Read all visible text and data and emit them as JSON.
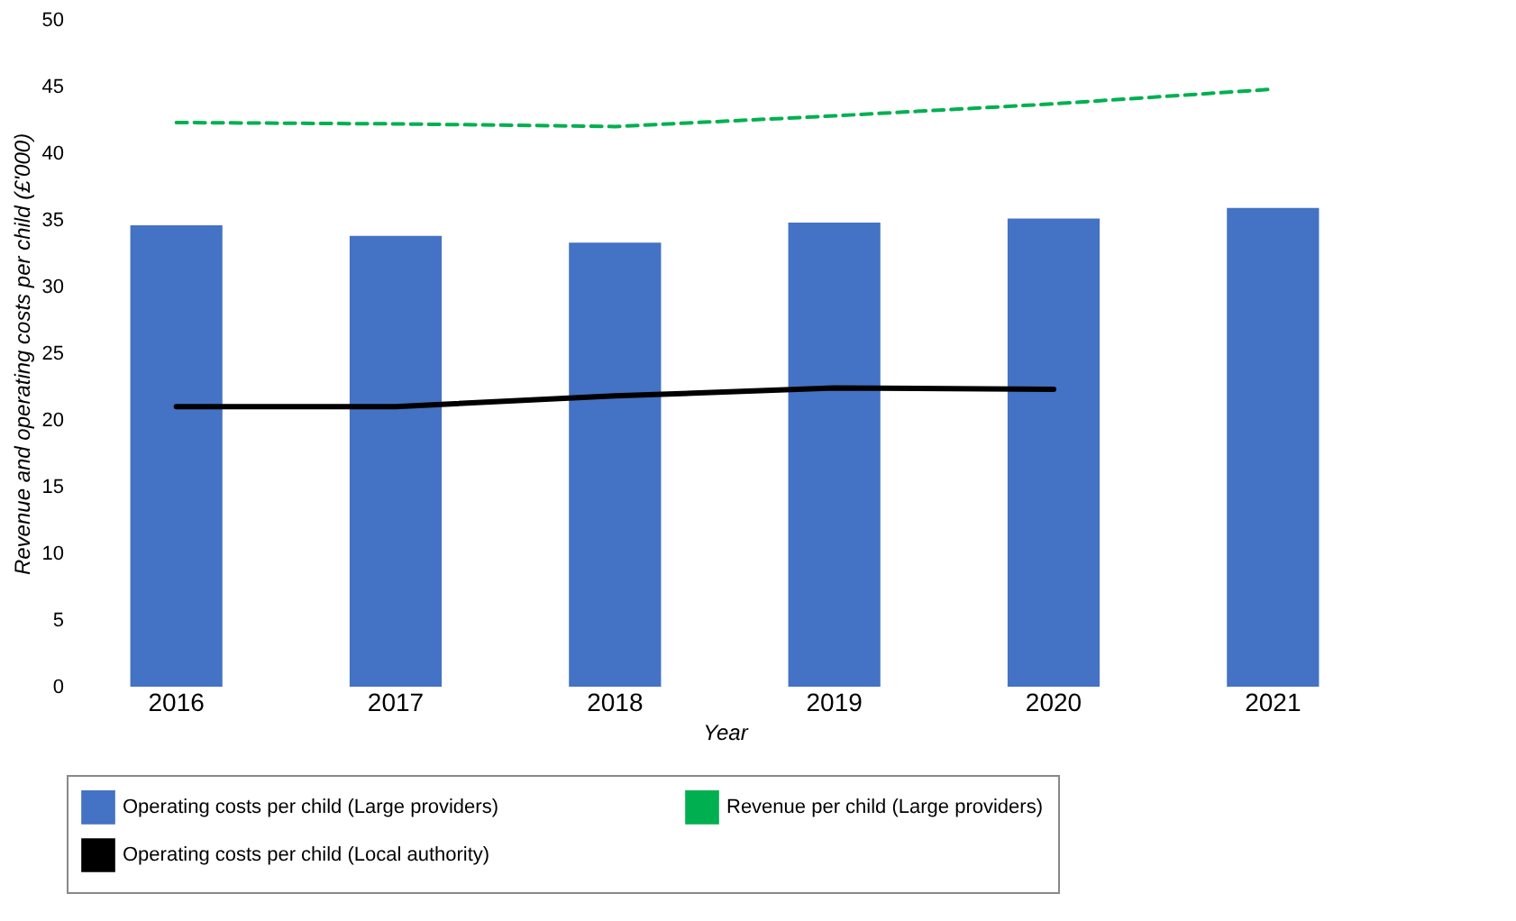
{
  "chart_data": {
    "type": "bar",
    "xlabel": "Year",
    "ylabel": "Revenue and operating costs per child (£'000)",
    "categories": [
      "2016",
      "2017",
      "2018",
      "2019",
      "2020",
      "2021"
    ],
    "ylim": [
      0,
      50
    ],
    "yticks": [
      0,
      5,
      10,
      15,
      20,
      25,
      30,
      35,
      40,
      45,
      50
    ],
    "grid": false,
    "legend": "bottom",
    "series": [
      {
        "name": "Operating costs per child (Large providers)",
        "color": "#4472c4",
        "values": [
          34.6,
          33.8,
          33.3,
          34.8,
          35.1,
          35.9
        ]
      },
      {
        "name": "Revenue per child (Large providers)",
        "type": "line",
        "line_style": "dashed",
        "color": "#00b050",
        "values": [
          42.3,
          42.2,
          42.0,
          42.8,
          43.7,
          44.8
        ]
      },
      {
        "name": "Operating costs per child (Local authority)",
        "type": "line",
        "line_style": "solid",
        "color": "#000000",
        "values": [
          21.0,
          21.0,
          21.8,
          22.4,
          22.3,
          null
        ]
      }
    ]
  }
}
